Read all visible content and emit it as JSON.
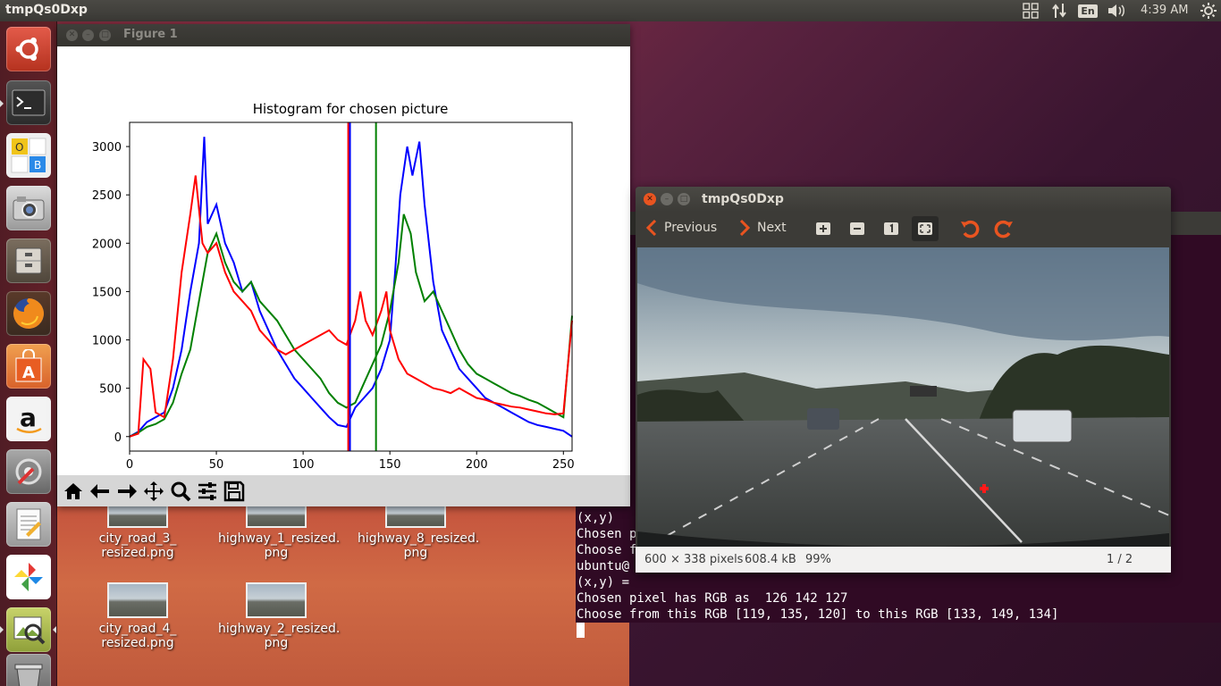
{
  "topbar": {
    "app_title": "tmpQs0Dxp",
    "clock": "4:39 AM",
    "keyboard_layout": "En"
  },
  "launcher": {
    "items": [
      {
        "name": "Ubuntu Dash",
        "icon": "ubuntu-logo-icon"
      },
      {
        "name": "Terminal",
        "icon": "terminal-icon"
      },
      {
        "name": "LibreOffice",
        "icon": "office-icon"
      },
      {
        "name": "Shotwell",
        "icon": "camera-icon"
      },
      {
        "name": "Files",
        "icon": "file-cabinet-icon"
      },
      {
        "name": "Firefox",
        "icon": "firefox-icon"
      },
      {
        "name": "Ubuntu Software",
        "icon": "shopping-bag-icon"
      },
      {
        "name": "Amazon",
        "icon": "amazon-icon"
      },
      {
        "name": "System Settings",
        "icon": "settings-wrench-icon"
      },
      {
        "name": "Text Editor",
        "icon": "text-editor-icon"
      },
      {
        "name": "Pin Wheel",
        "icon": "pinwheel-icon"
      },
      {
        "name": "Image Viewer",
        "icon": "image-viewer-icon"
      },
      {
        "name": "Trash",
        "icon": "trash-icon"
      }
    ]
  },
  "figure_window": {
    "title": "Figure 1",
    "toolbar": [
      "home-icon",
      "back-arrow-icon",
      "forward-arrow-icon",
      "pan-icon",
      "zoom-icon",
      "configure-icon",
      "save-icon"
    ]
  },
  "chart_data": {
    "type": "line",
    "title": "Histogram for chosen picture",
    "xlabel": "",
    "ylabel": "",
    "xlim": [
      0,
      255
    ],
    "ylim": [
      -150,
      3250
    ],
    "xticks": [
      "0",
      "50",
      "100",
      "150",
      "200",
      "250"
    ],
    "yticks": [
      "0",
      "500",
      "1000",
      "1500",
      "2000",
      "2500",
      "3000"
    ],
    "series": [
      {
        "color": "#0000ff",
        "points": [
          [
            0,
            0
          ],
          [
            5,
            50
          ],
          [
            10,
            150
          ],
          [
            15,
            200
          ],
          [
            20,
            250
          ],
          [
            25,
            500
          ],
          [
            30,
            900
          ],
          [
            35,
            1500
          ],
          [
            40,
            2000
          ],
          [
            43,
            3100
          ],
          [
            45,
            2200
          ],
          [
            50,
            2400
          ],
          [
            55,
            2000
          ],
          [
            60,
            1800
          ],
          [
            65,
            1500
          ],
          [
            70,
            1600
          ],
          [
            75,
            1300
          ],
          [
            80,
            1100
          ],
          [
            85,
            900
          ],
          [
            90,
            750
          ],
          [
            95,
            600
          ],
          [
            100,
            500
          ],
          [
            105,
            400
          ],
          [
            110,
            300
          ],
          [
            115,
            200
          ],
          [
            120,
            120
          ],
          [
            125,
            100
          ],
          [
            130,
            300
          ],
          [
            135,
            400
          ],
          [
            140,
            500
          ],
          [
            145,
            700
          ],
          [
            150,
            1000
          ],
          [
            153,
            1700
          ],
          [
            156,
            2500
          ],
          [
            160,
            3000
          ],
          [
            163,
            2700
          ],
          [
            167,
            3050
          ],
          [
            170,
            2400
          ],
          [
            175,
            1600
          ],
          [
            180,
            1100
          ],
          [
            185,
            900
          ],
          [
            190,
            700
          ],
          [
            195,
            600
          ],
          [
            200,
            500
          ],
          [
            205,
            400
          ],
          [
            210,
            350
          ],
          [
            215,
            300
          ],
          [
            220,
            250
          ],
          [
            225,
            200
          ],
          [
            230,
            150
          ],
          [
            235,
            120
          ],
          [
            240,
            100
          ],
          [
            245,
            80
          ],
          [
            250,
            60
          ],
          [
            255,
            0
          ]
        ]
      },
      {
        "color": "#008000",
        "points": [
          [
            0,
            0
          ],
          [
            5,
            40
          ],
          [
            10,
            100
          ],
          [
            15,
            130
          ],
          [
            20,
            180
          ],
          [
            25,
            350
          ],
          [
            30,
            650
          ],
          [
            35,
            900
          ],
          [
            40,
            1400
          ],
          [
            45,
            1900
          ],
          [
            50,
            2100
          ],
          [
            55,
            1800
          ],
          [
            60,
            1600
          ],
          [
            65,
            1500
          ],
          [
            70,
            1600
          ],
          [
            75,
            1400
          ],
          [
            80,
            1300
          ],
          [
            85,
            1200
          ],
          [
            90,
            1050
          ],
          [
            95,
            900
          ],
          [
            100,
            800
          ],
          [
            105,
            700
          ],
          [
            110,
            600
          ],
          [
            115,
            450
          ],
          [
            120,
            350
          ],
          [
            125,
            300
          ],
          [
            130,
            350
          ],
          [
            135,
            550
          ],
          [
            140,
            750
          ],
          [
            145,
            950
          ],
          [
            150,
            1300
          ],
          [
            155,
            1800
          ],
          [
            158,
            2300
          ],
          [
            162,
            2100
          ],
          [
            165,
            1700
          ],
          [
            170,
            1400
          ],
          [
            175,
            1500
          ],
          [
            180,
            1300
          ],
          [
            185,
            1100
          ],
          [
            190,
            900
          ],
          [
            195,
            750
          ],
          [
            200,
            650
          ],
          [
            205,
            600
          ],
          [
            210,
            550
          ],
          [
            215,
            500
          ],
          [
            220,
            450
          ],
          [
            225,
            420
          ],
          [
            230,
            380
          ],
          [
            235,
            350
          ],
          [
            240,
            300
          ],
          [
            245,
            250
          ],
          [
            250,
            200
          ],
          [
            255,
            1250
          ]
        ]
      },
      {
        "color": "#ff0000",
        "points": [
          [
            0,
            0
          ],
          [
            5,
            30
          ],
          [
            8,
            800
          ],
          [
            12,
            700
          ],
          [
            15,
            250
          ],
          [
            20,
            200
          ],
          [
            25,
            800
          ],
          [
            30,
            1700
          ],
          [
            35,
            2300
          ],
          [
            38,
            2700
          ],
          [
            42,
            2000
          ],
          [
            45,
            1900
          ],
          [
            50,
            2000
          ],
          [
            55,
            1700
          ],
          [
            60,
            1500
          ],
          [
            65,
            1400
          ],
          [
            70,
            1300
          ],
          [
            75,
            1100
          ],
          [
            80,
            1000
          ],
          [
            85,
            900
          ],
          [
            90,
            850
          ],
          [
            95,
            900
          ],
          [
            100,
            950
          ],
          [
            105,
            1000
          ],
          [
            110,
            1050
          ],
          [
            115,
            1100
          ],
          [
            120,
            1000
          ],
          [
            125,
            950
          ],
          [
            130,
            1200
          ],
          [
            133,
            1500
          ],
          [
            136,
            1200
          ],
          [
            140,
            1050
          ],
          [
            145,
            1300
          ],
          [
            148,
            1500
          ],
          [
            150,
            1100
          ],
          [
            155,
            800
          ],
          [
            160,
            650
          ],
          [
            165,
            600
          ],
          [
            170,
            550
          ],
          [
            175,
            500
          ],
          [
            180,
            480
          ],
          [
            185,
            450
          ],
          [
            190,
            500
          ],
          [
            195,
            450
          ],
          [
            200,
            400
          ],
          [
            205,
            380
          ],
          [
            210,
            350
          ],
          [
            215,
            330
          ],
          [
            220,
            310
          ],
          [
            225,
            300
          ],
          [
            230,
            280
          ],
          [
            235,
            260
          ],
          [
            240,
            240
          ],
          [
            245,
            230
          ],
          [
            250,
            240
          ],
          [
            255,
            1200
          ]
        ]
      }
    ],
    "vlines": [
      {
        "x": 126,
        "color": "#ff0000"
      },
      {
        "x": 127,
        "color": "#0000ff"
      },
      {
        "x": 142,
        "color": "#008000"
      }
    ]
  },
  "image_viewer": {
    "title": "tmpQs0Dxp",
    "previous_label": "Previous",
    "next_label": "Next",
    "tools": [
      "zoom-in-icon",
      "zoom-out-icon",
      "zoom-normal-icon",
      "best-fit-icon",
      "rotate-left-icon",
      "rotate-right-icon"
    ],
    "status_dims": "600 × 338 pixels",
    "status_size": "608.4 kB",
    "status_zoom": "99%",
    "status_page": "1 / 2"
  },
  "terminal": {
    "lines": [
      "(x,y)",
      "Chosen p",
      "Choose f",
      "ubuntu@",
      "(x,y) = ",
      "Chosen pixel has RGB as  126 142 127",
      "Choose from this RGB [119, 135, 120] to this RGB [133, 149, 134]"
    ]
  },
  "desktop_icons": [
    {
      "label": "city_road_3_\nresized.png",
      "name": "city-road-3"
    },
    {
      "label": "highway_1_resized.\npng",
      "name": "highway-1"
    },
    {
      "label": "highway_8_resized.\npng",
      "name": "highway-8"
    },
    {
      "label": "city_road_4_\nresized.png",
      "name": "city-road-4"
    },
    {
      "label": "highway_2_resized.\npng",
      "name": "highway-2"
    }
  ]
}
